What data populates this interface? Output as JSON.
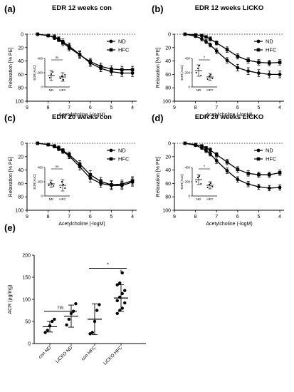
{
  "panels": [
    {
      "letter": "(a)",
      "title": "EDR 12 weeks con",
      "xlabel": "Acetylcholine (-logM)",
      "ylabel": "Relaxation [% PE]",
      "xticks": [
        "9",
        "8",
        "7",
        "6",
        "5",
        "4"
      ],
      "yticks": [
        "0",
        "20",
        "40",
        "60",
        "80",
        "100"
      ],
      "legend": [
        "ND",
        "HFC"
      ],
      "chart_data": {
        "type": "line",
        "xlim": [
          9,
          3.8
        ],
        "ylim": [
          0,
          100
        ],
        "y_inverted": true,
        "x": [
          8.5,
          8,
          7.7,
          7.5,
          7.3,
          7,
          6.5,
          6,
          5.5,
          5,
          4.5,
          4
        ],
        "series": [
          {
            "name": "ND",
            "marker": "circle",
            "values": [
              0,
              2,
              4,
              7,
              11,
              18,
              30,
              43,
              51,
              56,
              58,
              58
            ],
            "err": [
              1,
              2,
              3,
              3,
              4,
              5,
              5,
              5,
              5,
              5,
              5,
              5
            ]
          },
          {
            "name": "HFC",
            "marker": "square",
            "values": [
              0,
              2,
              5,
              8,
              13,
              20,
              31,
              41,
              48,
              52,
              53,
              53
            ],
            "err": [
              1,
              2,
              3,
              3,
              4,
              5,
              5,
              5,
              5,
              5,
              5,
              5
            ]
          }
        ]
      },
      "inset": {
        "ylabel": "EDR [AUC]",
        "yticks": [
          "0",
          "200",
          "400"
        ],
        "ylim": [
          0,
          400
        ],
        "categories": [
          "ND",
          "HFC"
        ],
        "significance": "ns",
        "groups": [
          {
            "mean": 160,
            "sd": 70,
            "points": [
              130,
              180,
              210
            ]
          },
          {
            "mean": 140,
            "sd": 60,
            "points": [
              120,
              150,
              100,
              170
            ]
          }
        ]
      }
    },
    {
      "letter": "(b)",
      "title": "EDR 12 weeks LiCKO",
      "xlabel": "Acetylcholine (-logM)",
      "ylabel": "Relaxation [% PE]",
      "xticks": [
        "9",
        "8",
        "7",
        "6",
        "5",
        "4"
      ],
      "yticks": [
        "0",
        "20",
        "40",
        "60",
        "80",
        "100"
      ],
      "legend": [
        "ND",
        "HFC"
      ],
      "chart_data": {
        "type": "line",
        "xlim": [
          9,
          3.8
        ],
        "ylim": [
          0,
          100
        ],
        "y_inverted": true,
        "x": [
          8.5,
          8,
          7.7,
          7.5,
          7.3,
          7,
          6.5,
          6,
          5.5,
          5,
          4.5,
          4
        ],
        "series": [
          {
            "name": "ND",
            "marker": "circle",
            "values": [
              0,
              3,
              7,
              11,
              16,
              25,
              39,
              50,
              55,
              58,
              60,
              60
            ],
            "err": [
              1,
              2,
              3,
              3,
              3,
              4,
              4,
              5,
              5,
              5,
              5,
              5
            ]
          },
          {
            "name": "HFC",
            "marker": "square",
            "values": [
              0,
              1,
              2,
              4,
              7,
              13,
              23,
              33,
              39,
              42,
              43,
              42
            ],
            "err": [
              1,
              1,
              2,
              2,
              3,
              3,
              4,
              4,
              4,
              4,
              4,
              4
            ]
          }
        ]
      },
      "inset": {
        "ylabel": "EDR [AUC]",
        "yticks": [
          "0",
          "200",
          "400"
        ],
        "ylim": [
          0,
          400
        ],
        "categories": [
          "ND",
          "HFC"
        ],
        "significance": "†",
        "groups": [
          {
            "mean": 230,
            "sd": 80,
            "points": [
              200,
              260,
              300,
              160
            ]
          },
          {
            "mean": 140,
            "sd": 50,
            "points": [
              110,
              150,
              170,
              120
            ]
          }
        ]
      }
    },
    {
      "letter": "(c)",
      "title": "EDR 20 weeks con",
      "xlabel": "Acetylcholine (-logM)",
      "ylabel": "Relaxation [% PE]",
      "xticks": [
        "9",
        "8",
        "7",
        "6",
        "5",
        "4"
      ],
      "yticks": [
        "0",
        "20",
        "40",
        "60",
        "80",
        "100"
      ],
      "legend": [
        "ND",
        "HFC"
      ],
      "chart_data": {
        "type": "line",
        "xlim": [
          9,
          3.8
        ],
        "ylim": [
          0,
          100
        ],
        "y_inverted": true,
        "x": [
          8.5,
          8,
          7.7,
          7.5,
          7.3,
          7,
          6.5,
          6,
          5.5,
          5,
          4.5,
          4
        ],
        "series": [
          {
            "name": "ND",
            "marker": "circle",
            "values": [
              0,
              2,
              5,
              8,
              12,
              19,
              35,
              52,
              60,
              63,
              63,
              58
            ],
            "err": [
              1,
              2,
              2,
              3,
              3,
              4,
              5,
              6,
              6,
              6,
              6,
              6
            ]
          },
          {
            "name": "HFC",
            "marker": "square",
            "values": [
              0,
              2,
              4,
              7,
              11,
              17,
              31,
              47,
              57,
              62,
              61,
              56
            ],
            "err": [
              1,
              2,
              2,
              3,
              3,
              4,
              5,
              6,
              6,
              6,
              6,
              6
            ]
          }
        ]
      },
      "inset": {
        "ylabel": "EDR [AUC]",
        "yticks": [
          "0",
          "200",
          "400"
        ],
        "ylim": [
          0,
          400
        ],
        "categories": [
          "ND",
          "HFC"
        ],
        "significance": "ns",
        "groups": [
          {
            "mean": 170,
            "sd": 50,
            "points": [
              150,
              190,
              170,
              140
            ]
          },
          {
            "mean": 150,
            "sd": 80,
            "points": [
              120,
              200,
              160,
              110
            ]
          }
        ]
      }
    },
    {
      "letter": "(d)",
      "title": "EDR 20 weeks LiCKO",
      "xlabel": "Acetylcholine (-logM)",
      "ylabel": "Relaxation [% PE]",
      "xticks": [
        "9",
        "8",
        "7",
        "6",
        "5",
        "4"
      ],
      "yticks": [
        "0",
        "20",
        "40",
        "60",
        "80",
        "100"
      ],
      "legend": [
        "ND",
        "HFC"
      ],
      "chart_data": {
        "type": "line",
        "xlim": [
          9,
          3.8
        ],
        "ylim": [
          0,
          100
        ],
        "y_inverted": true,
        "x": [
          8.5,
          8,
          7.7,
          7.5,
          7.3,
          7,
          6.5,
          6,
          5.5,
          5,
          4.5,
          4
        ],
        "series": [
          {
            "name": "ND",
            "marker": "circle",
            "values": [
              0,
              3,
              7,
              11,
              16,
              26,
              41,
              54,
              61,
              65,
              67,
              66
            ],
            "err": [
              1,
              2,
              2,
              3,
              3,
              4,
              4,
              4,
              4,
              4,
              4,
              4
            ]
          },
          {
            "name": "HFC",
            "marker": "square",
            "values": [
              0,
              2,
              4,
              7,
              10,
              17,
              28,
              39,
              45,
              47,
              47,
              44
            ],
            "err": [
              1,
              1,
              2,
              2,
              3,
              3,
              4,
              4,
              4,
              4,
              4,
              4
            ]
          }
        ]
      },
      "inset": {
        "ylabel": "EDR [AUC]",
        "yticks": [
          "0",
          "200",
          "400"
        ],
        "ylim": [
          0,
          400
        ],
        "categories": [
          "ND",
          "HFC"
        ],
        "significance": "†",
        "groups": [
          {
            "mean": 230,
            "sd": 70,
            "points": [
              200,
              260,
              280,
              170
            ]
          },
          {
            "mean": 150,
            "sd": 50,
            "points": [
              120,
              160,
              180,
              130
            ]
          }
        ]
      }
    }
  ],
  "panel_e": {
    "letter": "(e)",
    "ylabel": "ACR (µg/mg)",
    "yticks": [
      "0",
      "50",
      "100",
      "150",
      "200"
    ],
    "chart_data": {
      "type": "scatter",
      "ylim": [
        0,
        200
      ],
      "categories": [
        "con ND",
        "LiCKO ND",
        "con HFC",
        "LiCKO HFC"
      ],
      "groups": [
        {
          "category": "con ND",
          "mean": 38,
          "sd": 12,
          "points": [
            25,
            30,
            40,
            50,
            55
          ]
        },
        {
          "category": "LiCKO ND",
          "mean": 62,
          "sd": 25,
          "points": [
            42,
            55,
            68,
            73,
            90
          ]
        },
        {
          "category": "con HFC",
          "mean": 55,
          "sd": 35,
          "points": [
            22,
            25,
            50,
            75,
            88
          ]
        },
        {
          "category": "LiCKO HFC",
          "mean": 103,
          "sd": 30,
          "points": [
            68,
            75,
            80,
            92,
            97,
            105,
            113,
            120,
            133,
            137,
            160
          ]
        }
      ],
      "comparisons": [
        {
          "from": "con ND",
          "to": "LiCKO ND",
          "label": "ns"
        },
        {
          "from": "con HFC",
          "to": "LiCKO HFC",
          "label": "*"
        }
      ],
      "extra_marks": [
        {
          "category": "LiCKO HFC",
          "label": "†"
        }
      ]
    }
  }
}
